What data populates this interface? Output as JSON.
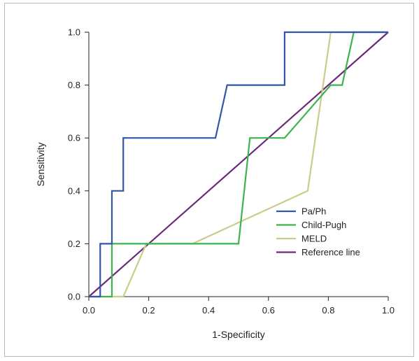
{
  "chart_data": {
    "type": "line",
    "title": "",
    "xlabel": "1-Specificity",
    "ylabel": "Sensitivity",
    "xlim": [
      0,
      1
    ],
    "ylim": [
      0,
      1
    ],
    "xticks": [
      "0.0",
      "0.2",
      "0.4",
      "0.6",
      "0.8",
      "1.0"
    ],
    "yticks": [
      "0.0",
      "0.2",
      "0.4",
      "0.6",
      "0.8",
      "1.0"
    ],
    "grid": false,
    "legend_position": "bottom-right",
    "series": [
      {
        "name": "Pa/Ph",
        "color": "#3355aa",
        "points": [
          [
            0,
            0
          ],
          [
            0.038,
            0
          ],
          [
            0.038,
            0.2
          ],
          [
            0.077,
            0.2
          ],
          [
            0.077,
            0.4
          ],
          [
            0.115,
            0.4
          ],
          [
            0.115,
            0.6
          ],
          [
            0.423,
            0.6
          ],
          [
            0.462,
            0.8
          ],
          [
            0.654,
            0.8
          ],
          [
            0.654,
            1.0
          ],
          [
            0.808,
            1.0
          ],
          [
            1.0,
            1.0
          ]
        ]
      },
      {
        "name": "Child-Pugh",
        "color": "#3cb44b",
        "points": [
          [
            0,
            0
          ],
          [
            0.077,
            0
          ],
          [
            0.077,
            0.2
          ],
          [
            0.5,
            0.2
          ],
          [
            0.538,
            0.6
          ],
          [
            0.654,
            0.6
          ],
          [
            0.808,
            0.8
          ],
          [
            0.846,
            0.8
          ],
          [
            0.885,
            1.0
          ],
          [
            1.0,
            1.0
          ]
        ]
      },
      {
        "name": "MELD",
        "color": "#cccc8a",
        "points": [
          [
            0,
            0
          ],
          [
            0.115,
            0
          ],
          [
            0.192,
            0.2
          ],
          [
            0.346,
            0.2
          ],
          [
            0.731,
            0.4
          ],
          [
            0.808,
            1.0
          ],
          [
            1.0,
            1.0
          ]
        ]
      },
      {
        "name": "Reference line",
        "color": "#6a2a7a",
        "points": [
          [
            0,
            0
          ],
          [
            1.0,
            1.0
          ]
        ]
      }
    ]
  }
}
